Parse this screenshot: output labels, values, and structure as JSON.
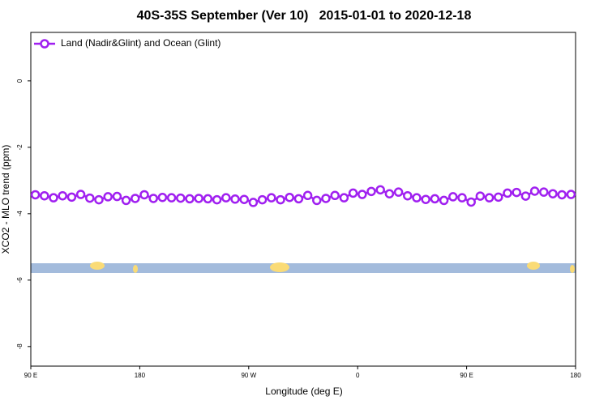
{
  "chart_data": {
    "type": "line",
    "title": "40S-35S September (Ver 10)   2015-01-01 to 2020-12-18",
    "x_label": "Longitude (deg E)",
    "y_label": "XCO2 - MLO trend (ppm)",
    "xlim": [
      90,
      540
    ],
    "ylim": [
      -8.59,
      1.46
    ],
    "xticks": [
      {
        "value": 90,
        "label": "90 E"
      },
      180,
      {
        "value": 270,
        "label": "90 W"
      },
      {
        "value": 360,
        "label": "0"
      },
      {
        "value": 450,
        "label": "90 E"
      },
      {
        "value": 540,
        "label": "180"
      }
    ],
    "yticks": [
      0,
      -2,
      -4,
      -6,
      -8
    ],
    "legend": "top-left",
    "x": [
      93.75,
      101.25,
      108.75,
      116.25,
      123.75,
      131.25,
      138.75,
      146.25,
      153.75,
      161.25,
      168.75,
      176.25,
      183.75,
      191.25,
      198.75,
      206.25,
      213.75,
      221.25,
      228.75,
      236.25,
      243.75,
      251.25,
      258.75,
      266.25,
      273.75,
      281.25,
      288.75,
      296.25,
      303.75,
      311.25,
      318.75,
      326.25,
      333.75,
      341.25,
      348.75,
      356.25,
      363.75,
      371.25,
      378.75,
      386.25,
      393.75,
      401.25,
      408.75,
      416.25,
      423.75,
      431.25,
      438.75,
      446.25,
      453.75,
      461.25,
      468.75,
      476.25,
      483.75,
      491.25,
      498.75,
      506.25,
      513.75,
      521.25,
      528.75,
      536.25
    ],
    "series": [
      {
        "name": "Land (Nadir&Glint) and Ocean (Glint)",
        "color": "#a020f0",
        "values": [
          -3.43,
          -3.46,
          -3.52,
          -3.46,
          -3.5,
          -3.42,
          -3.53,
          -3.58,
          -3.49,
          -3.48,
          -3.6,
          -3.54,
          -3.43,
          -3.54,
          -3.51,
          -3.52,
          -3.53,
          -3.55,
          -3.54,
          -3.55,
          -3.58,
          -3.52,
          -3.56,
          -3.57,
          -3.66,
          -3.58,
          -3.52,
          -3.58,
          -3.51,
          -3.55,
          -3.45,
          -3.6,
          -3.54,
          -3.45,
          -3.52,
          -3.38,
          -3.42,
          -3.33,
          -3.28,
          -3.4,
          -3.35,
          -3.46,
          -3.52,
          -3.57,
          -3.55,
          -3.6,
          -3.49,
          -3.52,
          -3.65,
          -3.47,
          -3.52,
          -3.5,
          -3.38,
          -3.36,
          -3.47,
          -3.32,
          -3.35,
          -3.4,
          -3.43,
          -3.42
        ]
      }
    ]
  }
}
